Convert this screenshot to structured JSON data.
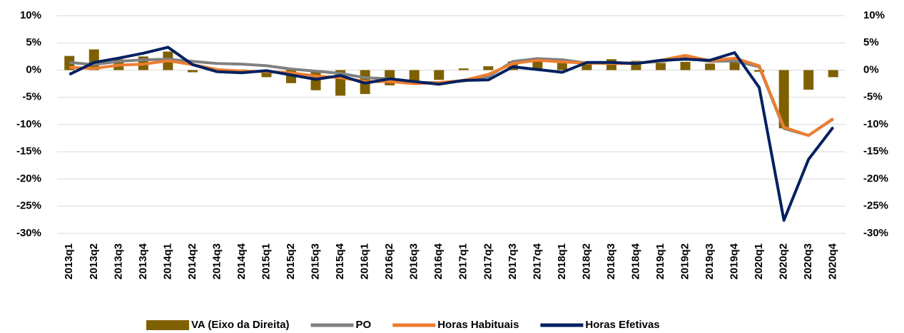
{
  "chart_data": {
    "type": "bar-line",
    "categories": [
      "2013q1",
      "2013q2",
      "2013q3",
      "2013q4",
      "2014q1",
      "2014q2",
      "2014q3",
      "2014q4",
      "2015q1",
      "2015q2",
      "2015q3",
      "2015q4",
      "2016q1",
      "2016q2",
      "2016q3",
      "2016q4",
      "2017q1",
      "2017q2",
      "2017q3",
      "2017q4",
      "2018q1",
      "2018q2",
      "2018q3",
      "2018q4",
      "2019q1",
      "2019q2",
      "2019q3",
      "2019q4",
      "2020q1",
      "2020q2",
      "2020q3",
      "2020q4"
    ],
    "series": [
      {
        "name": "VA (Eixo da Direita)",
        "type": "bar",
        "axis": "y2",
        "color": "#7f6000",
        "values": [
          2.6,
          3.8,
          2.0,
          2.5,
          3.4,
          -0.4,
          0.2,
          0.1,
          -1.3,
          -2.4,
          -3.7,
          -4.7,
          -4.4,
          -2.8,
          -2.2,
          -1.8,
          0.3,
          0.7,
          1.6,
          1.7,
          1.3,
          1.3,
          2.0,
          1.7,
          1.3,
          1.5,
          1.2,
          1.7,
          -0.3,
          -10.7,
          -3.6,
          -1.3
        ]
      },
      {
        "name": "PO",
        "type": "line",
        "color": "#808080",
        "values": [
          1.4,
          1.0,
          1.6,
          1.9,
          2.0,
          1.6,
          1.2,
          1.1,
          0.8,
          0.2,
          -0.2,
          -0.6,
          -1.4,
          -1.6,
          -2.3,
          -2.3,
          -2.0,
          -1.2,
          1.6,
          2.1,
          1.9,
          1.3,
          1.3,
          1.3,
          1.6,
          2.2,
          1.6,
          1.7,
          0.6,
          -10.7,
          -12.0,
          -9.0
        ]
      },
      {
        "name": "Horas Habituais",
        "type": "line",
        "color": "#ed7d31",
        "values": [
          0.5,
          0.3,
          0.9,
          1.1,
          1.7,
          1.0,
          0.1,
          -0.2,
          -0.3,
          -0.5,
          -1.1,
          -1.4,
          -2.1,
          -2.1,
          -2.5,
          -2.3,
          -1.9,
          -0.8,
          1.2,
          1.8,
          1.5,
          1.3,
          1.2,
          1.2,
          1.8,
          2.7,
          1.7,
          2.2,
          0.8,
          -10.5,
          -12.0,
          -8.9
        ]
      },
      {
        "name": "Horas Efetivas",
        "type": "line",
        "color": "#002060",
        "values": [
          -0.8,
          1.4,
          2.2,
          3.1,
          4.2,
          1.0,
          -0.3,
          -0.5,
          -0.1,
          -0.9,
          -1.7,
          -1.0,
          -2.4,
          -1.6,
          -2.1,
          -2.6,
          -1.9,
          -1.8,
          0.6,
          0.1,
          -0.4,
          1.4,
          1.4,
          1.2,
          1.8,
          2.0,
          1.8,
          3.2,
          -3.2,
          -27.6,
          -16.4,
          -10.5
        ]
      }
    ],
    "ylim": [
      -30,
      10
    ],
    "yticks": [
      {
        "value": -30,
        "label": "-30%"
      },
      {
        "value": -25,
        "label": "-25%"
      },
      {
        "value": -20,
        "label": "-20%"
      },
      {
        "value": -15,
        "label": "-15%"
      },
      {
        "value": -10,
        "label": "-10%"
      },
      {
        "value": -5,
        "label": "-5%"
      },
      {
        "value": 0,
        "label": "0%"
      },
      {
        "value": 5,
        "label": "5%"
      },
      {
        "value": 10,
        "label": "10%"
      }
    ],
    "y2lim": [
      -30,
      10
    ],
    "y2ticks": [
      {
        "value": -30,
        "label": "-30%"
      },
      {
        "value": -25,
        "label": "-25%"
      },
      {
        "value": -20,
        "label": "-20%"
      },
      {
        "value": -15,
        "label": "-15%"
      },
      {
        "value": -10,
        "label": "-10%"
      },
      {
        "value": -5,
        "label": "-5%"
      },
      {
        "value": 0,
        "label": "0%"
      },
      {
        "value": 5,
        "label": "5%"
      },
      {
        "value": 10,
        "label": "10%"
      }
    ],
    "grid": true,
    "legend": "bottom"
  }
}
